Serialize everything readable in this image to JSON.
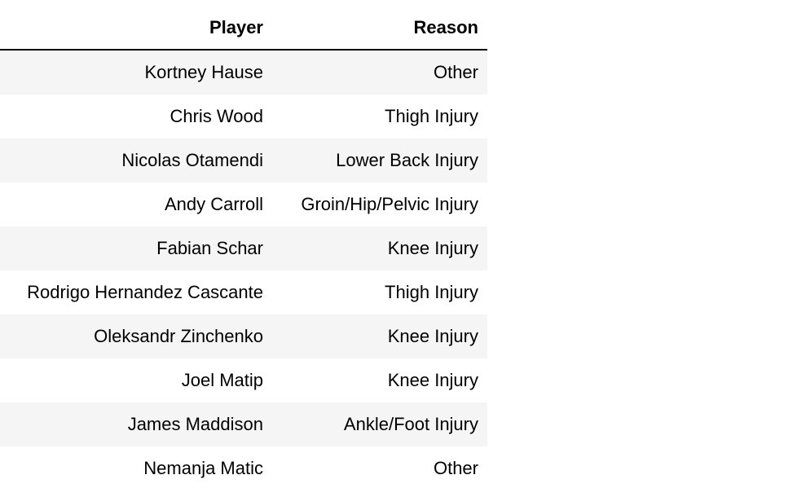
{
  "table": {
    "columns": [
      "Player",
      "Reason"
    ],
    "rows": [
      {
        "player": "Kortney Hause",
        "reason": "Other"
      },
      {
        "player": "Chris Wood",
        "reason": "Thigh Injury"
      },
      {
        "player": "Nicolas Otamendi",
        "reason": "Lower Back Injury"
      },
      {
        "player": "Andy Carroll",
        "reason": "Groin/Hip/Pelvic Injury"
      },
      {
        "player": "Fabian Schar",
        "reason": "Knee Injury"
      },
      {
        "player": "Rodrigo Hernandez Cascante",
        "reason": "Thigh Injury"
      },
      {
        "player": "Oleksandr Zinchenko",
        "reason": "Knee Injury"
      },
      {
        "player": "Joel Matip",
        "reason": "Knee Injury"
      },
      {
        "player": "James Maddison",
        "reason": "Ankle/Foot Injury"
      },
      {
        "player": "Nemanja Matic",
        "reason": "Other"
      }
    ]
  }
}
